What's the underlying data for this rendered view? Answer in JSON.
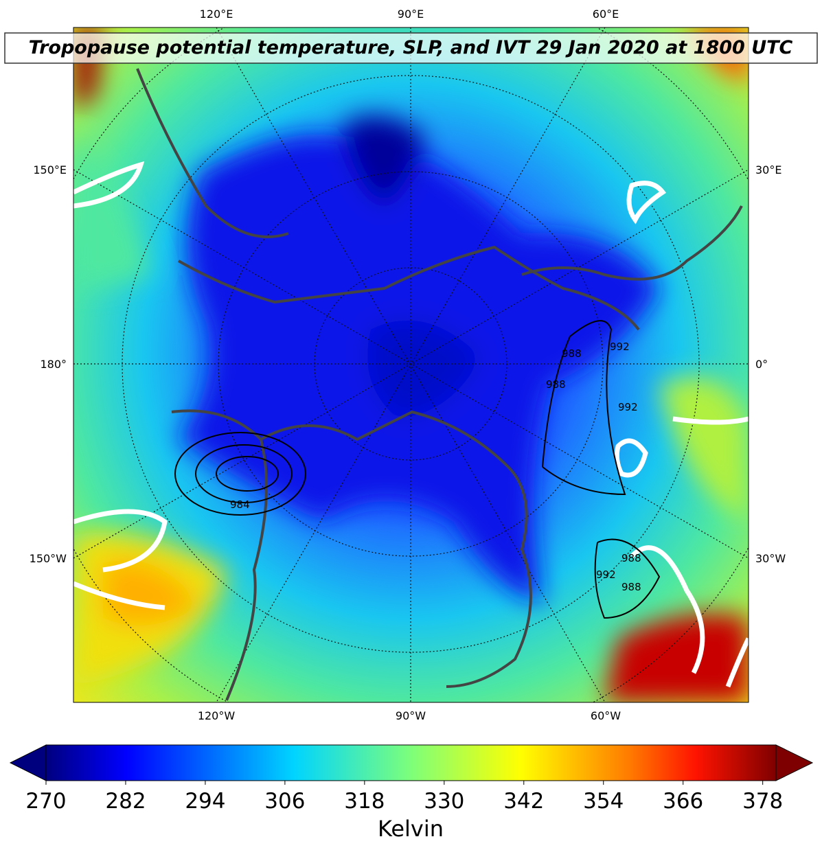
{
  "title": "Tropopause potential temperature, SLP, and IVT 29 Jan 2020 at 1800 UTC",
  "map": {
    "top_labels": [
      "120°E",
      "90°E",
      "60°E"
    ],
    "bottom_labels": [
      "120°W",
      "90°W",
      "60°W"
    ],
    "left_labels": [
      "150°E",
      "180°",
      "150°W"
    ],
    "right_labels": [
      "30°E",
      "0°",
      "30°W"
    ],
    "contour_labels": [
      "988",
      "988",
      "992",
      "992",
      "984",
      "992",
      "988",
      "988"
    ]
  },
  "colorbar": {
    "label": "Kelvin",
    "range": [
      270,
      380
    ],
    "ticks": [
      270,
      282,
      294,
      306,
      318,
      330,
      342,
      354,
      366,
      378
    ]
  }
}
